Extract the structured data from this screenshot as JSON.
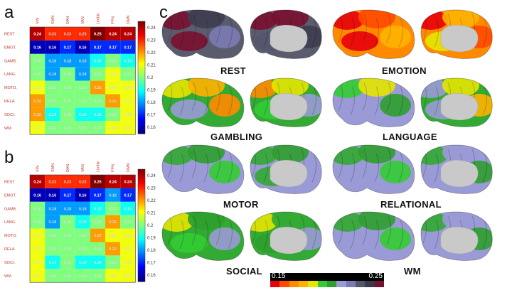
{
  "panels": {
    "a": "a",
    "b": "b",
    "c": "c"
  },
  "networks": [
    "VIN",
    "SMN",
    "DAN",
    "VAN",
    "Limbic",
    "FPN",
    "DMN"
  ],
  "tasks": [
    "REST",
    "EMOT.",
    "GAMB.",
    "LANG.",
    "MOTO.",
    "RELA.",
    "SOCI.",
    "WM"
  ],
  "colorbar_ticks": [
    "0.24",
    "0.23",
    "0.22",
    "0.21",
    "0.2",
    "0.19",
    "0.18",
    "0.17",
    "0.16"
  ],
  "colorbar_range": [
    0.155,
    0.245
  ],
  "matrix_a": [
    [
      "0.24",
      "0.23",
      "0.23",
      "0.23",
      "0.25",
      "0.24",
      "0.24"
    ],
    [
      "0.16",
      "0.16",
      "0.17",
      "0.16",
      "0.17",
      "0.17",
      "0.17"
    ],
    [
      "0.20",
      "0.18",
      "0.18",
      "0.18",
      "0.19",
      "0.20",
      "0.19"
    ],
    [
      "0.20",
      "0.18",
      "0.20",
      "0.18",
      "0.20",
      "0.21",
      "0.20"
    ],
    [
      "0.21",
      "0.20",
      "0.20",
      "0.20",
      "0.22",
      "0.21",
      "0.21"
    ],
    [
      "0.22",
      "0.20",
      "0.20",
      "0.20",
      "0.20",
      "0.22",
      "0.21"
    ],
    [
      "0.22",
      "0.19",
      "0.20",
      "0.19",
      "0.19",
      "0.20",
      "0.21"
    ],
    [
      "0.21",
      "0.20",
      "0.20",
      "0.20",
      "0.20",
      "0.21",
      "0.21"
    ]
  ],
  "matrix_b": [
    [
      "0.24",
      "0.23",
      "0.23",
      "0.23",
      "0.25",
      "0.24",
      "0.24"
    ],
    [
      "0.16",
      "0.16",
      "0.17",
      "0.16",
      "0.17",
      "0.18",
      "0.17"
    ],
    [
      "0.20",
      "0.18",
      "0.18",
      "0.18",
      "0.19",
      "0.20",
      "0.19"
    ],
    [
      "0.20",
      "0.18",
      "0.20",
      "0.19",
      "0.20",
      "0.22",
      "0.20"
    ],
    [
      "0.21",
      "0.20",
      "0.20",
      "0.20",
      "0.22",
      "0.21",
      "0.21"
    ],
    [
      "0.21",
      "0.20",
      "0.20",
      "0.20",
      "0.20",
      "0.22",
      "0.21"
    ],
    [
      "0.21",
      "0.19",
      "0.20",
      "0.19",
      "0.19",
      "0.20",
      "0.21"
    ],
    [
      "0.21",
      "0.20",
      "0.20",
      "0.20",
      "0.20",
      "0.21",
      "0.21"
    ]
  ],
  "brain_labels": [
    "REST",
    "EMOTION",
    "GAMBLING",
    "LANGUAGE",
    "MOTOR",
    "RELATIONAL",
    "SOCIAL",
    "WM"
  ],
  "brain_colorbar": {
    "min": "0.15",
    "max": "0.25"
  }
}
